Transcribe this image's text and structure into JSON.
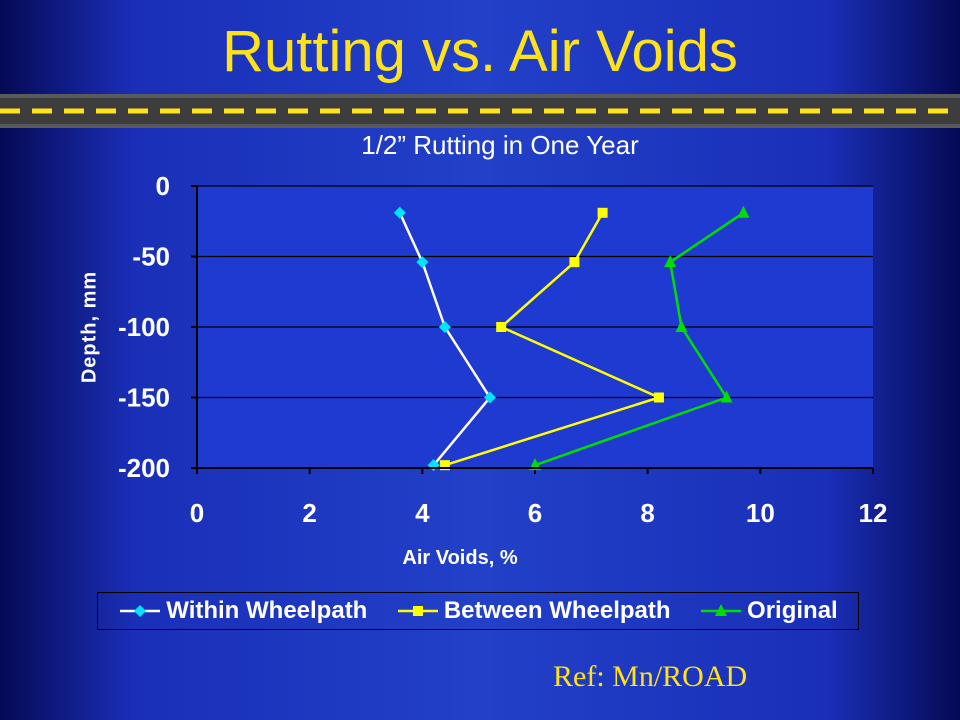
{
  "slide": {
    "title": "Rutting vs. Air Voids",
    "reference": "Ref: Mn/ROAD"
  },
  "colors": {
    "background": "#2240c8",
    "title": "#ffe21a",
    "road": "#3d3d3d",
    "lane_marking": "#ffe21a"
  },
  "chart_data": {
    "type": "line",
    "title": "1/2” Rutting in One Year",
    "xlabel": "Air Voids, %",
    "ylabel": "Depth, mm",
    "xlim": [
      0,
      12
    ],
    "ylim": [
      -200,
      0
    ],
    "xticks": [
      0,
      2,
      4,
      6,
      8,
      10,
      12
    ],
    "yticks": [
      0,
      -50,
      -100,
      -150,
      -200
    ],
    "grid": "horizontal",
    "legend_position": "bottom",
    "series": [
      {
        "name": "Within Wheelpath",
        "color": "#00e5ff",
        "line_color": "#ffffff",
        "marker": "diamond",
        "x": [
          3.6,
          4.0,
          4.4,
          5.2,
          4.2
        ],
        "y": [
          -19,
          -54,
          -100,
          -150,
          -198
        ]
      },
      {
        "name": "Between Wheelpath",
        "color": "#ffff00",
        "line_color": "#ffff00",
        "marker": "square",
        "x": [
          7.2,
          6.7,
          5.4,
          8.2,
          4.4
        ],
        "y": [
          -19,
          -54,
          -100,
          -150,
          -198
        ]
      },
      {
        "name": "Original",
        "color": "#00dd00",
        "line_color": "#00dd00",
        "marker": "triangle",
        "x": [
          9.7,
          8.4,
          8.6,
          9.4,
          6.0
        ],
        "y": [
          -19,
          -54,
          -100,
          -150,
          -198
        ]
      }
    ]
  }
}
